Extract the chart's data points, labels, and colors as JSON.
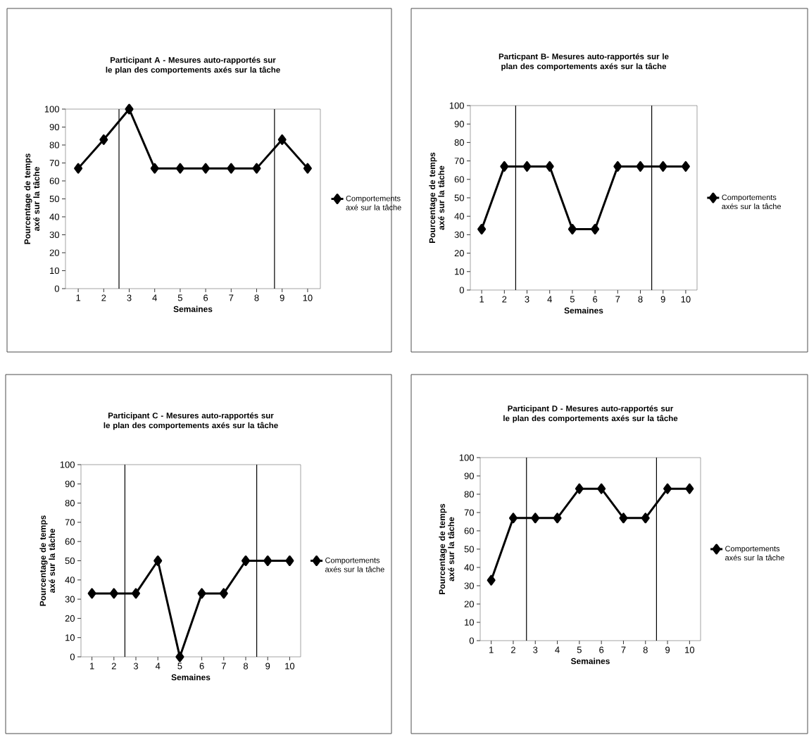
{
  "chart_data": [
    {
      "type": "line",
      "title": "Participant A - Mesures auto-rapportés sur le plan des comportements axés sur la tâche",
      "xlabel": "Semaines",
      "ylabel": "Pourcentage de temps axé sur la tâche",
      "x": [
        1,
        2,
        3,
        4,
        5,
        6,
        7,
        8,
        9,
        10
      ],
      "xlim": [
        0.5,
        10.5
      ],
      "xticks": [
        1,
        2,
        3,
        4,
        5,
        6,
        7,
        8,
        9,
        10
      ],
      "ylim": [
        0,
        100
      ],
      "yticks": [
        0,
        10,
        20,
        30,
        40,
        50,
        60,
        70,
        80,
        90,
        100
      ],
      "marker": "diamond",
      "legend": "right",
      "series": [
        {
          "name": "Comportements axé sur la tâche",
          "color": "#000000",
          "values": [
            67,
            83,
            100,
            67,
            67,
            67,
            67,
            67,
            83,
            67
          ]
        }
      ],
      "ref_lines": [
        {
          "axis": "x",
          "value": 2.6,
          "color": "#000000"
        },
        {
          "axis": "x",
          "value": 8.7,
          "color": "#000000"
        }
      ]
    },
    {
      "type": "line",
      "title": "Particpant B- Mesures auto-rapportés sur le plan des comportements axés sur la tâche",
      "xlabel": "Semaines",
      "ylabel": "Pourcentage de temps axé sur la tâche",
      "x": [
        1,
        2,
        3,
        4,
        5,
        6,
        7,
        8,
        9,
        10
      ],
      "xlim": [
        0.5,
        10.5
      ],
      "xticks": [
        1,
        2,
        3,
        4,
        5,
        6,
        7,
        8,
        9,
        10
      ],
      "ylim": [
        0,
        100
      ],
      "yticks": [
        0,
        10,
        20,
        30,
        40,
        50,
        60,
        70,
        80,
        90,
        100
      ],
      "marker": "diamond",
      "legend": "right",
      "series": [
        {
          "name": "Comportements axés sur la tâche",
          "color": "#000000",
          "values": [
            33,
            67,
            67,
            67,
            33,
            33,
            67,
            67,
            67,
            67
          ]
        }
      ],
      "ref_lines": [
        {
          "axis": "x",
          "value": 2.5,
          "color": "#000000"
        },
        {
          "axis": "x",
          "value": 8.5,
          "color": "#000000"
        }
      ]
    },
    {
      "type": "line",
      "title": "Participant C - Mesures auto-rapportés sur le plan des comportements axés sur la tâche",
      "xlabel": "Semaines",
      "ylabel": "Pourcentage de temps axé sur la tâche",
      "x": [
        1,
        2,
        3,
        4,
        5,
        6,
        7,
        8,
        9,
        10
      ],
      "xlim": [
        0.5,
        10.5
      ],
      "xticks": [
        1,
        2,
        3,
        4,
        5,
        6,
        7,
        8,
        9,
        10
      ],
      "ylim": [
        0,
        100
      ],
      "yticks": [
        0,
        10,
        20,
        30,
        40,
        50,
        60,
        70,
        80,
        90,
        100
      ],
      "marker": "diamond",
      "legend": "right",
      "series": [
        {
          "name": "Comportements axés sur la tâche",
          "color": "#000000",
          "values": [
            33,
            33,
            33,
            50,
            0,
            33,
            33,
            50,
            50,
            50
          ]
        }
      ],
      "ref_lines": [
        {
          "axis": "x",
          "value": 2.5,
          "color": "#000000"
        },
        {
          "axis": "x",
          "value": 8.5,
          "color": "#000000"
        }
      ]
    },
    {
      "type": "line",
      "title": "Participant D - Mesures auto-rapportés sur le plan des comportements axés sur la tâche",
      "xlabel": "Semaines",
      "ylabel": "Pourcentage de temps axé sur la tâche",
      "x": [
        1,
        2,
        3,
        4,
        5,
        6,
        7,
        8,
        9,
        10
      ],
      "xlim": [
        0.5,
        10.5
      ],
      "xticks": [
        1,
        2,
        3,
        4,
        5,
        6,
        7,
        8,
        9,
        10
      ],
      "ylim": [
        0,
        100
      ],
      "yticks": [
        0,
        10,
        20,
        30,
        40,
        50,
        60,
        70,
        80,
        90,
        100
      ],
      "marker": "diamond",
      "legend": "right",
      "series": [
        {
          "name": "Comportements axés sur la tâche",
          "color": "#000000",
          "values": [
            33,
            67,
            67,
            67,
            83,
            83,
            67,
            67,
            83,
            83
          ]
        }
      ],
      "ref_lines": [
        {
          "axis": "x",
          "value": 2.6,
          "color": "#000000"
        },
        {
          "axis": "x",
          "value": 8.5,
          "color": "#000000"
        }
      ]
    }
  ]
}
